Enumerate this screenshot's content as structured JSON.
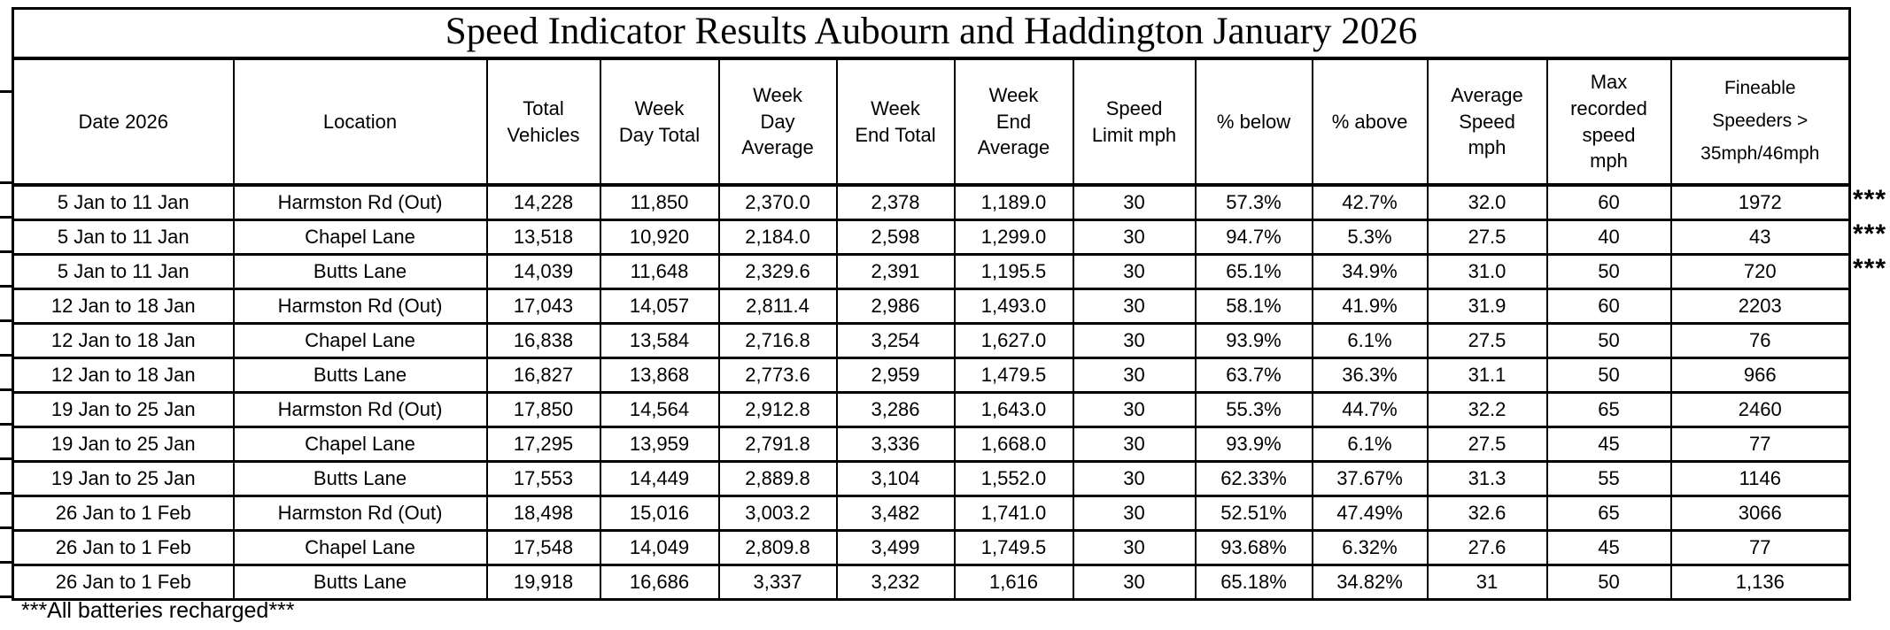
{
  "page": {
    "title": "Speed Indicator Results Aubourn and Haddington January 2026",
    "footnote": "***All batteries recharged***",
    "row_note_marker": "***"
  },
  "table": {
    "headers": [
      "Date 2026",
      "Location",
      "Total\nVehicles",
      "Week\nDay Total",
      "Week\nDay\nAverage",
      "Week\nEnd Total",
      "Week\nEnd\nAverage",
      "Speed\nLimit mph",
      "% below",
      "% above",
      "Average\nSpeed\nmph",
      "Max\nrecorded\nspeed\nmph",
      "Fineable\nSpeeders >\n35mph/46mph"
    ],
    "rows": [
      [
        "5 Jan to 11 Jan",
        "Harmston Rd (Out)",
        "14,228",
        "11,850",
        "2,370.0",
        "2,378",
        "1,189.0",
        "30",
        "57.3%",
        "42.7%",
        "32.0",
        "60",
        "1972"
      ],
      [
        "5 Jan to 11 Jan",
        "Chapel Lane",
        "13,518",
        "10,920",
        "2,184.0",
        "2,598",
        "1,299.0",
        "30",
        "94.7%",
        "5.3%",
        "27.5",
        "40",
        "43"
      ],
      [
        "5 Jan to 11 Jan",
        "Butts Lane",
        "14,039",
        "11,648",
        "2,329.6",
        "2,391",
        "1,195.5",
        "30",
        "65.1%",
        "34.9%",
        "31.0",
        "50",
        "720"
      ],
      [
        "12 Jan to 18 Jan",
        "Harmston Rd (Out)",
        "17,043",
        "14,057",
        "2,811.4",
        "2,986",
        "1,493.0",
        "30",
        "58.1%",
        "41.9%",
        "31.9",
        "60",
        "2203"
      ],
      [
        "12 Jan to 18 Jan",
        "Chapel Lane",
        "16,838",
        "13,584",
        "2,716.8",
        "3,254",
        "1,627.0",
        "30",
        "93.9%",
        "6.1%",
        "27.5",
        "50",
        "76"
      ],
      [
        "12 Jan to 18 Jan",
        "Butts Lane",
        "16,827",
        "13,868",
        "2,773.6",
        "2,959",
        "1,479.5",
        "30",
        "63.7%",
        "36.3%",
        "31.1",
        "50",
        "966"
      ],
      [
        "19 Jan to 25 Jan",
        "Harmston Rd (Out)",
        "17,850",
        "14,564",
        "2,912.8",
        "3,286",
        "1,643.0",
        "30",
        "55.3%",
        "44.7%",
        "32.2",
        "65",
        "2460"
      ],
      [
        "19 Jan to 25 Jan",
        "Chapel Lane",
        "17,295",
        "13,959",
        "2,791.8",
        "3,336",
        "1,668.0",
        "30",
        "93.9%",
        "6.1%",
        "27.5",
        "45",
        "77"
      ],
      [
        "19 Jan to 25 Jan",
        "Butts Lane",
        "17,553",
        "14,449",
        "2,889.8",
        "3,104",
        "1,552.0",
        "30",
        "62.33%",
        "37.67%",
        "31.3",
        "55",
        "1146"
      ],
      [
        "26 Jan to 1 Feb",
        "Harmston Rd (Out)",
        "18,498",
        "15,016",
        "3,003.2",
        "3,482",
        "1,741.0",
        "30",
        "52.51%",
        "47.49%",
        "32.6",
        "65",
        "3066"
      ],
      [
        "26 Jan to 1 Feb",
        "Chapel Lane",
        "17,548",
        "14,049",
        "2,809.8",
        "3,499",
        "1,749.5",
        "30",
        "93.68%",
        "6.32%",
        "27.6",
        "45",
        "77"
      ],
      [
        "26 Jan to 1 Feb",
        "Butts Lane",
        "19,918",
        "16,686",
        "3,337",
        "3,232",
        "1,616",
        "30",
        "65.18%",
        "34.82%",
        "31",
        "50",
        "1,136"
      ]
    ],
    "marker_rows": [
      0,
      1,
      2
    ]
  },
  "colors": {
    "border": "#000000",
    "background": "#ffffff",
    "text": "#000000"
  }
}
